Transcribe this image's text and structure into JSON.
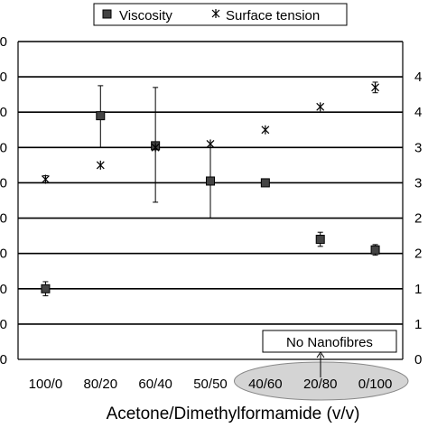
{
  "chart_data": {
    "type": "scatter",
    "categories": [
      "100/0",
      "80/20",
      "60/40",
      "50/50",
      "40/60",
      "20/80",
      "0/100"
    ],
    "xlabel": "Acetone/Dimethylformamide (v/v)",
    "ylabel": "",
    "ylim": [
      0,
      9
    ],
    "yticks_left": [
      "0",
      "0",
      "0",
      "0",
      "0",
      "0",
      "0",
      "0",
      "0",
      "0"
    ],
    "yticks_right": [
      "0",
      "1",
      "1",
      "2",
      "2",
      "3",
      "3",
      "4",
      "4"
    ],
    "grid": true,
    "legend_placement": "top",
    "series": [
      {
        "name": "Viscosity",
        "marker": "square",
        "values": [
          2.0,
          6.9,
          6.05,
          5.05,
          5.0,
          3.4,
          3.1
        ],
        "err_low": [
          0.2,
          0.9,
          1.6,
          1.05,
          0.1,
          0.2,
          0.15
        ],
        "err_high": [
          0.2,
          0.85,
          1.65,
          0.95,
          0.1,
          0.2,
          0.15
        ]
      },
      {
        "name": "Surface tension",
        "marker": "asterisk",
        "values": [
          5.1,
          5.5,
          6.0,
          6.1,
          6.5,
          7.15,
          7.7
        ],
        "err_low": [
          0.1,
          0,
          0,
          0,
          0,
          0,
          0.15
        ],
        "err_high": [
          0.1,
          0,
          0,
          0,
          0,
          0,
          0.15
        ]
      }
    ],
    "annotation": {
      "text": "No Nanofibres",
      "categories": [
        "40/60",
        "20/80",
        "0/100"
      ]
    }
  }
}
